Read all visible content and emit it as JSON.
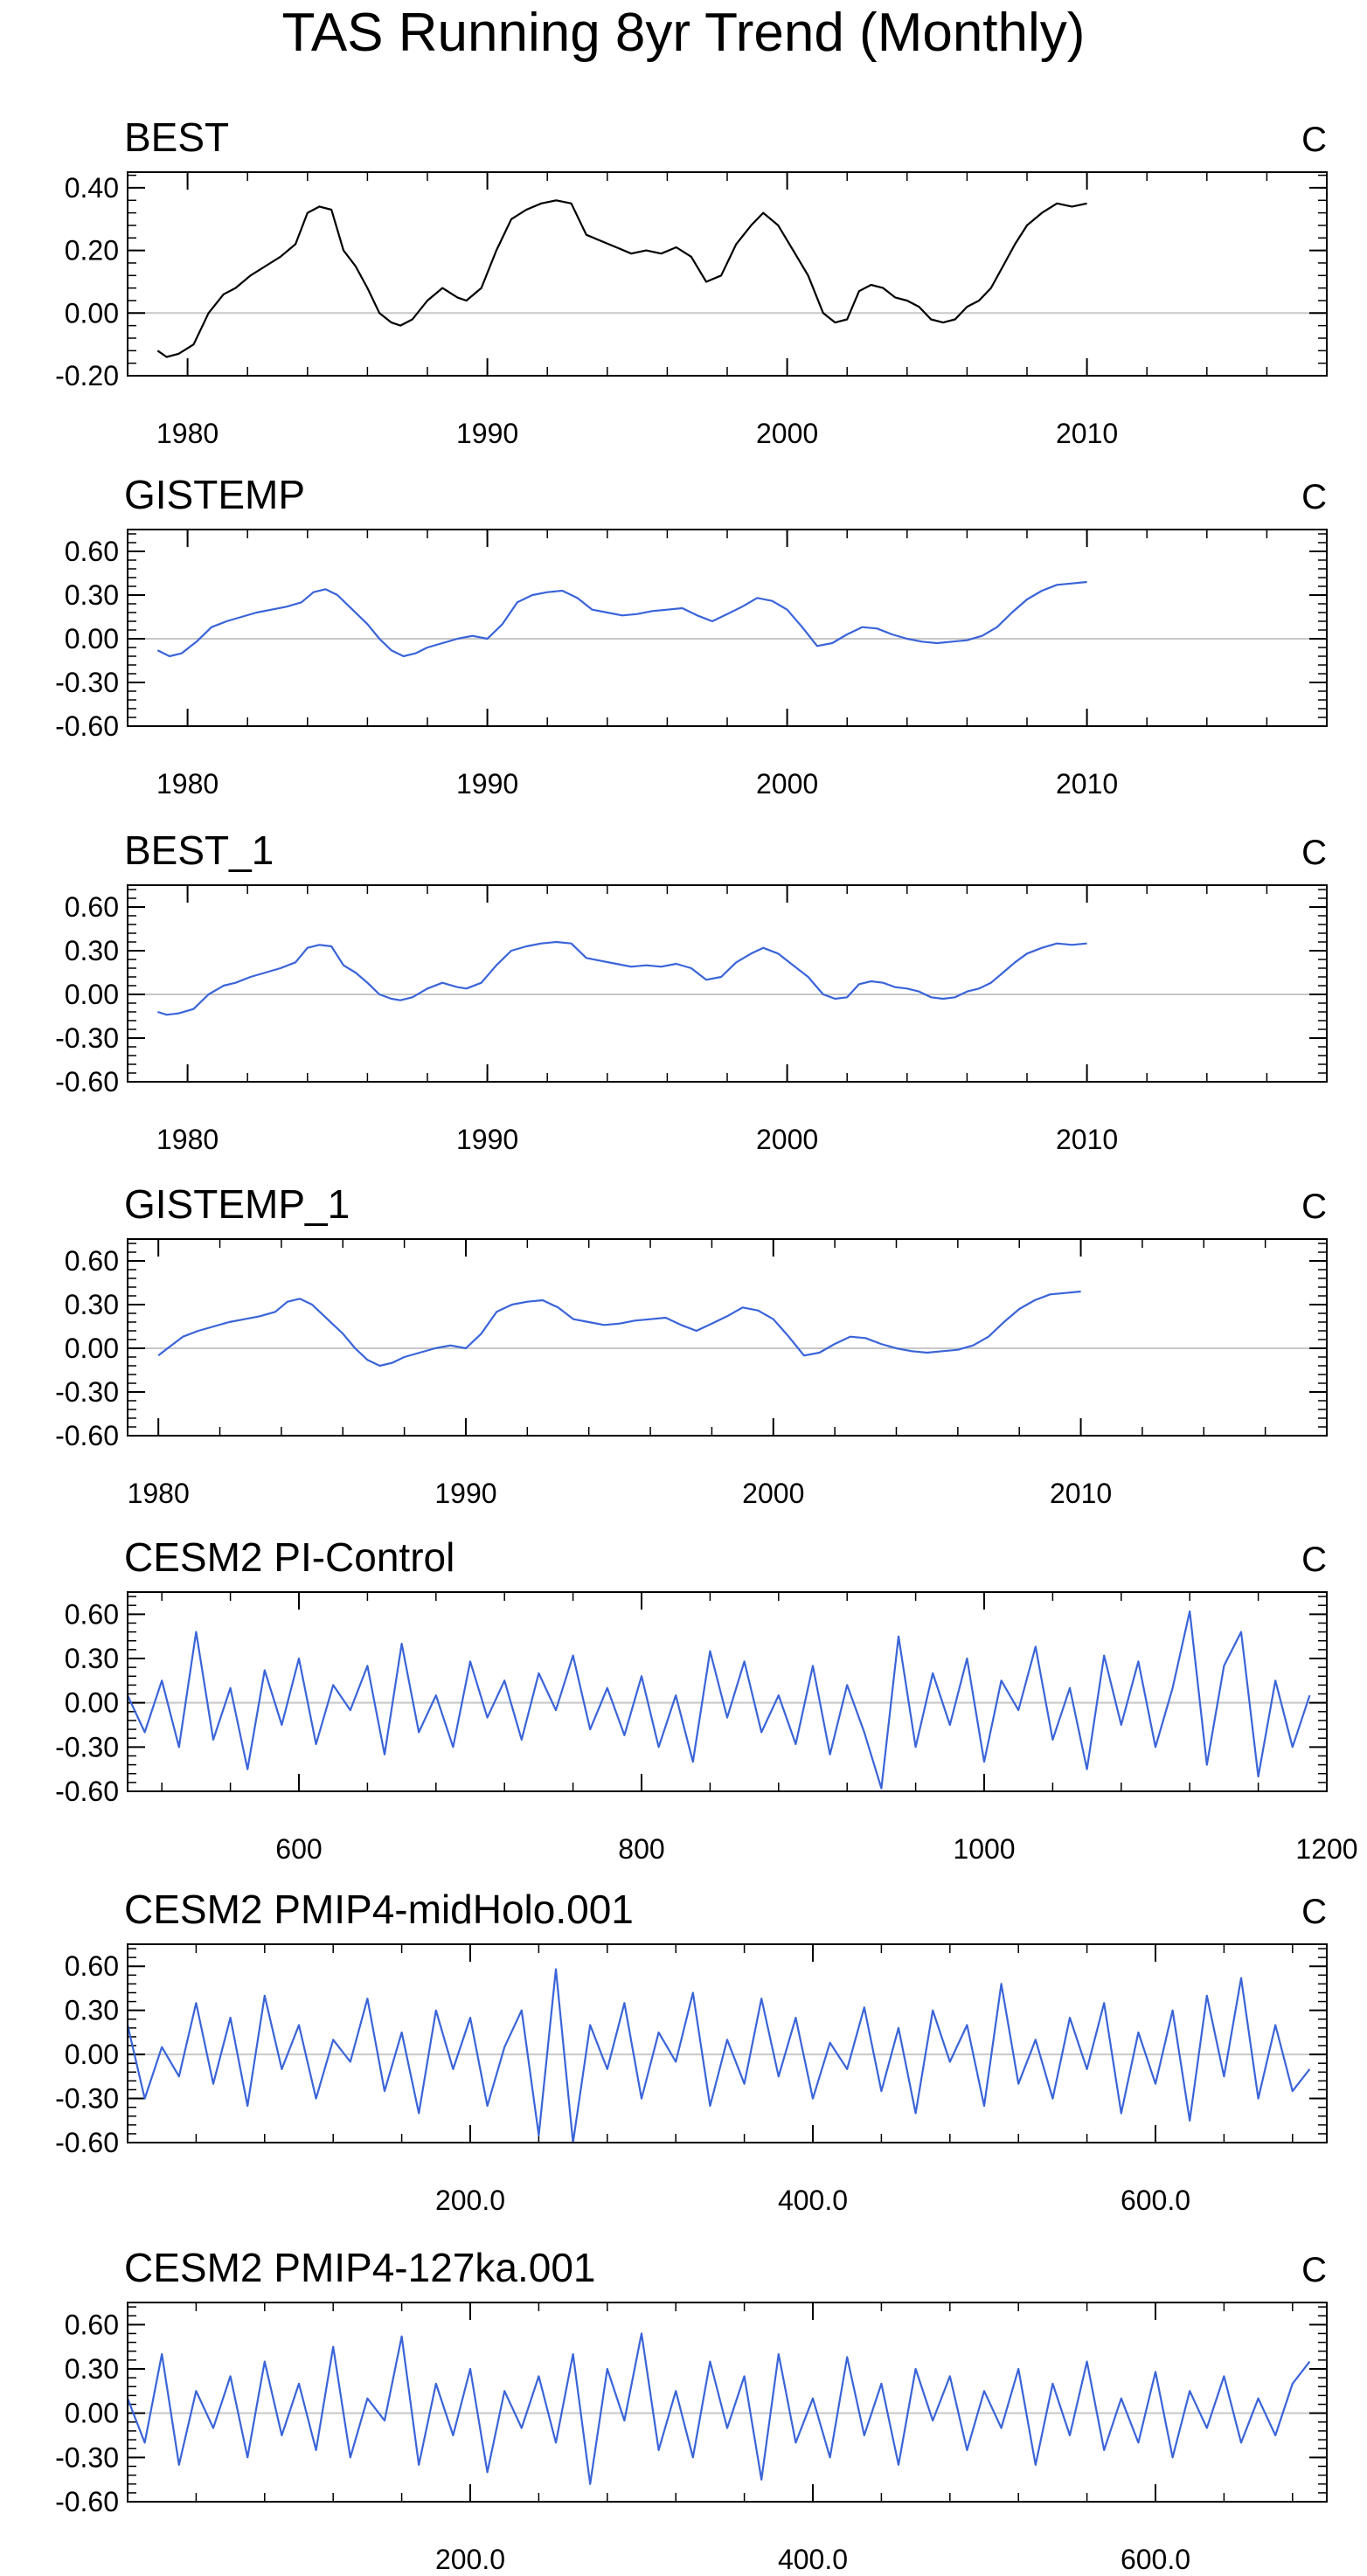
{
  "figure_title": "TAS Running 8yr Trend (Monthly)",
  "colors": {
    "observed": "#000000",
    "model": "#3a64d8",
    "axis": "#000000",
    "zero_line": "#c8c8c8"
  },
  "chart_data": [
    {
      "type": "line",
      "title": "BEST",
      "units": "C",
      "line_color": "#000000",
      "xlim": [
        1978,
        2018
      ],
      "ylim": [
        -0.2,
        0.45
      ],
      "xticks": [
        1980,
        1990,
        2000,
        2010
      ],
      "xtick_labels": [
        "1980",
        "1990",
        "2000",
        "2010"
      ],
      "yticks": [
        -0.2,
        0.0,
        0.2,
        0.4
      ],
      "ytick_labels": [
        "-0.20",
        "0.00",
        "0.20",
        "0.40"
      ],
      "reference_line": 0,
      "x": [
        1979.0,
        1979.3,
        1979.7,
        1980.2,
        1980.7,
        1981.2,
        1981.6,
        1982.1,
        1982.6,
        1983.1,
        1983.6,
        1984.0,
        1984.4,
        1984.8,
        1985.2,
        1985.6,
        1986.0,
        1986.4,
        1986.8,
        1987.1,
        1987.5,
        1988.0,
        1988.5,
        1989.0,
        1989.3,
        1989.8,
        1990.3,
        1990.8,
        1991.3,
        1991.8,
        1992.3,
        1992.8,
        1993.3,
        1993.8,
        1994.3,
        1994.8,
        1995.3,
        1995.8,
        1996.3,
        1996.8,
        1997.3,
        1997.8,
        1998.3,
        1998.8,
        1999.2,
        1999.7,
        2000.2,
        2000.7,
        2001.2,
        2001.6,
        2002.0,
        2002.4,
        2002.8,
        2003.2,
        2003.6,
        2004.0,
        2004.4,
        2004.8,
        2005.2,
        2005.6,
        2006.0,
        2006.4,
        2006.8,
        2007.2,
        2007.6,
        2008.0,
        2008.5,
        2009.0,
        2009.5,
        2010.0
      ],
      "values": [
        -0.12,
        -0.14,
        -0.13,
        -0.1,
        0.0,
        0.06,
        0.08,
        0.12,
        0.15,
        0.18,
        0.22,
        0.32,
        0.34,
        0.33,
        0.2,
        0.15,
        0.08,
        0.0,
        -0.03,
        -0.04,
        -0.02,
        0.04,
        0.08,
        0.05,
        0.04,
        0.08,
        0.2,
        0.3,
        0.33,
        0.35,
        0.36,
        0.35,
        0.25,
        0.23,
        0.21,
        0.19,
        0.2,
        0.19,
        0.21,
        0.18,
        0.1,
        0.12,
        0.22,
        0.28,
        0.32,
        0.28,
        0.2,
        0.12,
        0.0,
        -0.03,
        -0.02,
        0.07,
        0.09,
        0.08,
        0.05,
        0.04,
        0.02,
        -0.02,
        -0.03,
        -0.02,
        0.02,
        0.04,
        0.08,
        0.15,
        0.22,
        0.28,
        0.32,
        0.35,
        0.34,
        0.35
      ]
    },
    {
      "type": "line",
      "title": "GISTEMP",
      "units": "C",
      "line_color": "#3a64d8",
      "xlim": [
        1978,
        2018
      ],
      "ylim": [
        -0.6,
        0.75
      ],
      "xticks": [
        1980,
        1990,
        2000,
        2010
      ],
      "xtick_labels": [
        "1980",
        "1990",
        "2000",
        "2010"
      ],
      "yticks": [
        -0.6,
        -0.3,
        0.0,
        0.3,
        0.6
      ],
      "ytick_labels": [
        "-0.60",
        "-0.30",
        "0.00",
        "0.30",
        "0.60"
      ],
      "reference_line": 0,
      "x": [
        1979.0,
        1979.4,
        1979.8,
        1980.3,
        1980.8,
        1981.3,
        1981.8,
        1982.3,
        1982.8,
        1983.3,
        1983.8,
        1984.2,
        1984.6,
        1985.0,
        1985.5,
        1986.0,
        1986.4,
        1986.8,
        1987.2,
        1987.6,
        1988.0,
        1988.5,
        1989.0,
        1989.5,
        1990.0,
        1990.5,
        1991.0,
        1991.5,
        1992.0,
        1992.5,
        1993.0,
        1993.5,
        1994.0,
        1994.5,
        1995.0,
        1995.5,
        1996.0,
        1996.5,
        1997.0,
        1997.5,
        1998.0,
        1998.5,
        1999.0,
        1999.5,
        2000.0,
        2000.5,
        2001.0,
        2001.5,
        2002.0,
        2002.5,
        2003.0,
        2003.5,
        2004.0,
        2004.5,
        2005.0,
        2005.5,
        2006.0,
        2006.5,
        2007.0,
        2007.5,
        2008.0,
        2008.5,
        2009.0,
        2009.5,
        2010.0
      ],
      "values": [
        -0.08,
        -0.12,
        -0.1,
        -0.02,
        0.08,
        0.12,
        0.15,
        0.18,
        0.2,
        0.22,
        0.25,
        0.32,
        0.34,
        0.3,
        0.2,
        0.1,
        0.0,
        -0.08,
        -0.12,
        -0.1,
        -0.06,
        -0.03,
        0.0,
        0.02,
        0.0,
        0.1,
        0.25,
        0.3,
        0.32,
        0.33,
        0.28,
        0.2,
        0.18,
        0.16,
        0.17,
        0.19,
        0.2,
        0.21,
        0.16,
        0.12,
        0.17,
        0.22,
        0.28,
        0.26,
        0.2,
        0.08,
        -0.05,
        -0.03,
        0.03,
        0.08,
        0.07,
        0.03,
        0.0,
        -0.02,
        -0.03,
        -0.02,
        -0.01,
        0.02,
        0.08,
        0.18,
        0.27,
        0.33,
        0.37,
        0.38,
        0.39
      ]
    },
    {
      "type": "line",
      "title": "BEST_1",
      "units": "C",
      "line_color": "#3a64d8",
      "xlim": [
        1978,
        2018
      ],
      "ylim": [
        -0.6,
        0.75
      ],
      "xticks": [
        1980,
        1990,
        2000,
        2010
      ],
      "xtick_labels": [
        "1980",
        "1990",
        "2000",
        "2010"
      ],
      "yticks": [
        -0.6,
        -0.3,
        0.0,
        0.3,
        0.6
      ],
      "ytick_labels": [
        "-0.60",
        "-0.30",
        "0.00",
        "0.30",
        "0.60"
      ],
      "reference_line": 0,
      "x": [
        1979.0,
        1979.3,
        1979.7,
        1980.2,
        1980.7,
        1981.2,
        1981.6,
        1982.1,
        1982.6,
        1983.1,
        1983.6,
        1984.0,
        1984.4,
        1984.8,
        1985.2,
        1985.6,
        1986.0,
        1986.4,
        1986.8,
        1987.1,
        1987.5,
        1988.0,
        1988.5,
        1989.0,
        1989.3,
        1989.8,
        1990.3,
        1990.8,
        1991.3,
        1991.8,
        1992.3,
        1992.8,
        1993.3,
        1993.8,
        1994.3,
        1994.8,
        1995.3,
        1995.8,
        1996.3,
        1996.8,
        1997.3,
        1997.8,
        1998.3,
        1998.8,
        1999.2,
        1999.7,
        2000.2,
        2000.7,
        2001.2,
        2001.6,
        2002.0,
        2002.4,
        2002.8,
        2003.2,
        2003.6,
        2004.0,
        2004.4,
        2004.8,
        2005.2,
        2005.6,
        2006.0,
        2006.4,
        2006.8,
        2007.2,
        2007.6,
        2008.0,
        2008.5,
        2009.0,
        2009.5,
        2010.0
      ],
      "values": [
        -0.12,
        -0.14,
        -0.13,
        -0.1,
        0.0,
        0.06,
        0.08,
        0.12,
        0.15,
        0.18,
        0.22,
        0.32,
        0.34,
        0.33,
        0.2,
        0.15,
        0.08,
        0.0,
        -0.03,
        -0.04,
        -0.02,
        0.04,
        0.08,
        0.05,
        0.04,
        0.08,
        0.2,
        0.3,
        0.33,
        0.35,
        0.36,
        0.35,
        0.25,
        0.23,
        0.21,
        0.19,
        0.2,
        0.19,
        0.21,
        0.18,
        0.1,
        0.12,
        0.22,
        0.28,
        0.32,
        0.28,
        0.2,
        0.12,
        0.0,
        -0.03,
        -0.02,
        0.07,
        0.09,
        0.08,
        0.05,
        0.04,
        0.02,
        -0.02,
        -0.03,
        -0.02,
        0.02,
        0.04,
        0.08,
        0.15,
        0.22,
        0.28,
        0.32,
        0.35,
        0.34,
        0.35
      ]
    },
    {
      "type": "line",
      "title": "GISTEMP_1",
      "units": "C",
      "line_color": "#3a64d8",
      "xlim": [
        1979,
        2018
      ],
      "ylim": [
        -0.6,
        0.75
      ],
      "xticks": [
        1980,
        1990,
        2000,
        2010
      ],
      "xtick_labels": [
        "1980",
        "1990",
        "2000",
        "2010"
      ],
      "yticks": [
        -0.6,
        -0.3,
        0.0,
        0.3,
        0.6
      ],
      "ytick_labels": [
        "-0.60",
        "-0.30",
        "0.00",
        "0.30",
        "0.60"
      ],
      "reference_line": 0,
      "x": [
        1980.0,
        1980.3,
        1980.8,
        1981.3,
        1981.8,
        1982.3,
        1982.8,
        1983.3,
        1983.8,
        1984.2,
        1984.6,
        1985.0,
        1985.5,
        1986.0,
        1986.4,
        1986.8,
        1987.2,
        1987.6,
        1988.0,
        1988.5,
        1989.0,
        1989.5,
        1990.0,
        1990.5,
        1991.0,
        1991.5,
        1992.0,
        1992.5,
        1993.0,
        1993.5,
        1994.0,
        1994.5,
        1995.0,
        1995.5,
        1996.0,
        1996.5,
        1997.0,
        1997.5,
        1998.0,
        1998.5,
        1999.0,
        1999.5,
        2000.0,
        2000.5,
        2001.0,
        2001.5,
        2002.0,
        2002.5,
        2003.0,
        2003.5,
        2004.0,
        2004.5,
        2005.0,
        2005.5,
        2006.0,
        2006.5,
        2007.0,
        2007.5,
        2008.0,
        2008.5,
        2009.0,
        2009.5,
        2010.0
      ],
      "values": [
        -0.05,
        0.0,
        0.08,
        0.12,
        0.15,
        0.18,
        0.2,
        0.22,
        0.25,
        0.32,
        0.34,
        0.3,
        0.2,
        0.1,
        0.0,
        -0.08,
        -0.12,
        -0.1,
        -0.06,
        -0.03,
        0.0,
        0.02,
        0.0,
        0.1,
        0.25,
        0.3,
        0.32,
        0.33,
        0.28,
        0.2,
        0.18,
        0.16,
        0.17,
        0.19,
        0.2,
        0.21,
        0.16,
        0.12,
        0.17,
        0.22,
        0.28,
        0.26,
        0.2,
        0.08,
        -0.05,
        -0.03,
        0.03,
        0.08,
        0.07,
        0.03,
        0.0,
        -0.02,
        -0.03,
        -0.02,
        -0.01,
        0.02,
        0.08,
        0.18,
        0.27,
        0.33,
        0.37,
        0.38,
        0.39
      ]
    },
    {
      "type": "line",
      "title": "CESM2 PI-Control",
      "units": "C",
      "line_color": "#3a64d8",
      "xlim": [
        500,
        1200
      ],
      "ylim": [
        -0.6,
        0.75
      ],
      "xticks": [
        600,
        800,
        1000,
        1200
      ],
      "xtick_labels": [
        "600",
        "800",
        "1000",
        "1200"
      ],
      "yticks": [
        -0.6,
        -0.3,
        0.0,
        0.3,
        0.6
      ],
      "ytick_labels": [
        "-0.60",
        "-0.30",
        "0.00",
        "0.30",
        "0.60"
      ],
      "reference_line": 0,
      "x": [
        500,
        510,
        520,
        530,
        540,
        550,
        560,
        570,
        580,
        590,
        600,
        610,
        620,
        630,
        640,
        650,
        660,
        670,
        680,
        690,
        700,
        710,
        720,
        730,
        740,
        750,
        760,
        770,
        780,
        790,
        800,
        810,
        820,
        830,
        840,
        850,
        860,
        870,
        880,
        890,
        900,
        910,
        920,
        930,
        940,
        950,
        960,
        970,
        980,
        990,
        1000,
        1010,
        1020,
        1030,
        1040,
        1050,
        1060,
        1070,
        1080,
        1090,
        1100,
        1110,
        1120,
        1130,
        1140,
        1150,
        1160,
        1170,
        1180,
        1190
      ],
      "values": [
        0.05,
        -0.2,
        0.15,
        -0.3,
        0.48,
        -0.25,
        0.1,
        -0.45,
        0.22,
        -0.15,
        0.3,
        -0.28,
        0.12,
        -0.05,
        0.25,
        -0.35,
        0.4,
        -0.2,
        0.05,
        -0.3,
        0.28,
        -0.1,
        0.15,
        -0.25,
        0.2,
        -0.05,
        0.32,
        -0.18,
        0.1,
        -0.22,
        0.18,
        -0.3,
        0.05,
        -0.4,
        0.35,
        -0.1,
        0.28,
        -0.2,
        0.05,
        -0.28,
        0.25,
        -0.35,
        0.12,
        -0.2,
        -0.58,
        0.45,
        -0.3,
        0.2,
        -0.15,
        0.3,
        -0.4,
        0.15,
        -0.05,
        0.38,
        -0.25,
        0.1,
        -0.45,
        0.32,
        -0.15,
        0.28,
        -0.3,
        0.1,
        0.62,
        -0.42,
        0.25,
        0.48,
        -0.5,
        0.15,
        -0.3,
        0.05
      ]
    },
    {
      "type": "line",
      "title": "CESM2 PMIP4-midHolo.001",
      "units": "C",
      "line_color": "#3a64d8",
      "xlim": [
        0,
        700
      ],
      "ylim": [
        -0.6,
        0.75
      ],
      "xticks": [
        200,
        400,
        600
      ],
      "xtick_labels": [
        "200.0",
        "400.0",
        "600.0"
      ],
      "yticks": [
        -0.6,
        -0.3,
        0.0,
        0.3,
        0.6
      ],
      "ytick_labels": [
        "-0.60",
        "-0.30",
        "0.00",
        "0.30",
        "0.60"
      ],
      "reference_line": 0,
      "x": [
        0,
        10,
        20,
        30,
        40,
        50,
        60,
        70,
        80,
        90,
        100,
        110,
        120,
        130,
        140,
        150,
        160,
        170,
        180,
        190,
        200,
        210,
        220,
        230,
        240,
        250,
        260,
        270,
        280,
        290,
        300,
        310,
        320,
        330,
        340,
        350,
        360,
        370,
        380,
        390,
        400,
        410,
        420,
        430,
        440,
        450,
        460,
        470,
        480,
        490,
        500,
        510,
        520,
        530,
        540,
        550,
        560,
        570,
        580,
        590,
        600,
        610,
        620,
        630,
        640,
        650,
        660,
        670,
        680,
        690
      ],
      "values": [
        0.2,
        -0.3,
        0.05,
        -0.15,
        0.35,
        -0.2,
        0.25,
        -0.35,
        0.4,
        -0.1,
        0.2,
        -0.3,
        0.1,
        -0.05,
        0.38,
        -0.25,
        0.15,
        -0.4,
        0.3,
        -0.1,
        0.25,
        -0.35,
        0.05,
        0.3,
        -0.55,
        0.58,
        -0.6,
        0.2,
        -0.1,
        0.35,
        -0.3,
        0.15,
        -0.05,
        0.42,
        -0.35,
        0.1,
        -0.2,
        0.38,
        -0.15,
        0.25,
        -0.3,
        0.08,
        -0.1,
        0.32,
        -0.25,
        0.18,
        -0.4,
        0.3,
        -0.05,
        0.2,
        -0.35,
        0.48,
        -0.2,
        0.1,
        -0.3,
        0.25,
        -0.1,
        0.35,
        -0.4,
        0.15,
        -0.2,
        0.3,
        -0.45,
        0.4,
        -0.15,
        0.52,
        -0.3,
        0.2,
        -0.25,
        -0.1
      ]
    },
    {
      "type": "line",
      "title": "CESM2 PMIP4-127ka.001",
      "units": "C",
      "line_color": "#3a64d8",
      "xlim": [
        0,
        700
      ],
      "ylim": [
        -0.6,
        0.75
      ],
      "xticks": [
        200,
        400,
        600
      ],
      "xtick_labels": [
        "200.0",
        "400.0",
        "600.0"
      ],
      "yticks": [
        -0.6,
        -0.3,
        0.0,
        0.3,
        0.6
      ],
      "ytick_labels": [
        "-0.60",
        "-0.30",
        "0.00",
        "0.30",
        "0.60"
      ],
      "reference_line": 0,
      "x": [
        0,
        10,
        20,
        30,
        40,
        50,
        60,
        70,
        80,
        90,
        100,
        110,
        120,
        130,
        140,
        150,
        160,
        170,
        180,
        190,
        200,
        210,
        220,
        230,
        240,
        250,
        260,
        270,
        280,
        290,
        300,
        310,
        320,
        330,
        340,
        350,
        360,
        370,
        380,
        390,
        400,
        410,
        420,
        430,
        440,
        450,
        460,
        470,
        480,
        490,
        500,
        510,
        520,
        530,
        540,
        550,
        560,
        570,
        580,
        590,
        600,
        610,
        620,
        630,
        640,
        650,
        660,
        670,
        680,
        690
      ],
      "values": [
        0.1,
        -0.2,
        0.4,
        -0.35,
        0.15,
        -0.1,
        0.25,
        -0.3,
        0.35,
        -0.15,
        0.2,
        -0.25,
        0.45,
        -0.3,
        0.1,
        -0.05,
        0.52,
        -0.35,
        0.2,
        -0.15,
        0.3,
        -0.4,
        0.15,
        -0.1,
        0.25,
        -0.2,
        0.4,
        -0.48,
        0.3,
        -0.05,
        0.54,
        -0.25,
        0.15,
        -0.3,
        0.35,
        -0.1,
        0.25,
        -0.45,
        0.4,
        -0.2,
        0.1,
        -0.3,
        0.38,
        -0.15,
        0.2,
        -0.35,
        0.3,
        -0.05,
        0.25,
        -0.25,
        0.15,
        -0.1,
        0.3,
        -0.35,
        0.2,
        -0.15,
        0.35,
        -0.25,
        0.1,
        -0.2,
        0.28,
        -0.3,
        0.15,
        -0.1,
        0.25,
        -0.2,
        0.1,
        -0.15,
        0.2,
        0.35
      ]
    }
  ]
}
